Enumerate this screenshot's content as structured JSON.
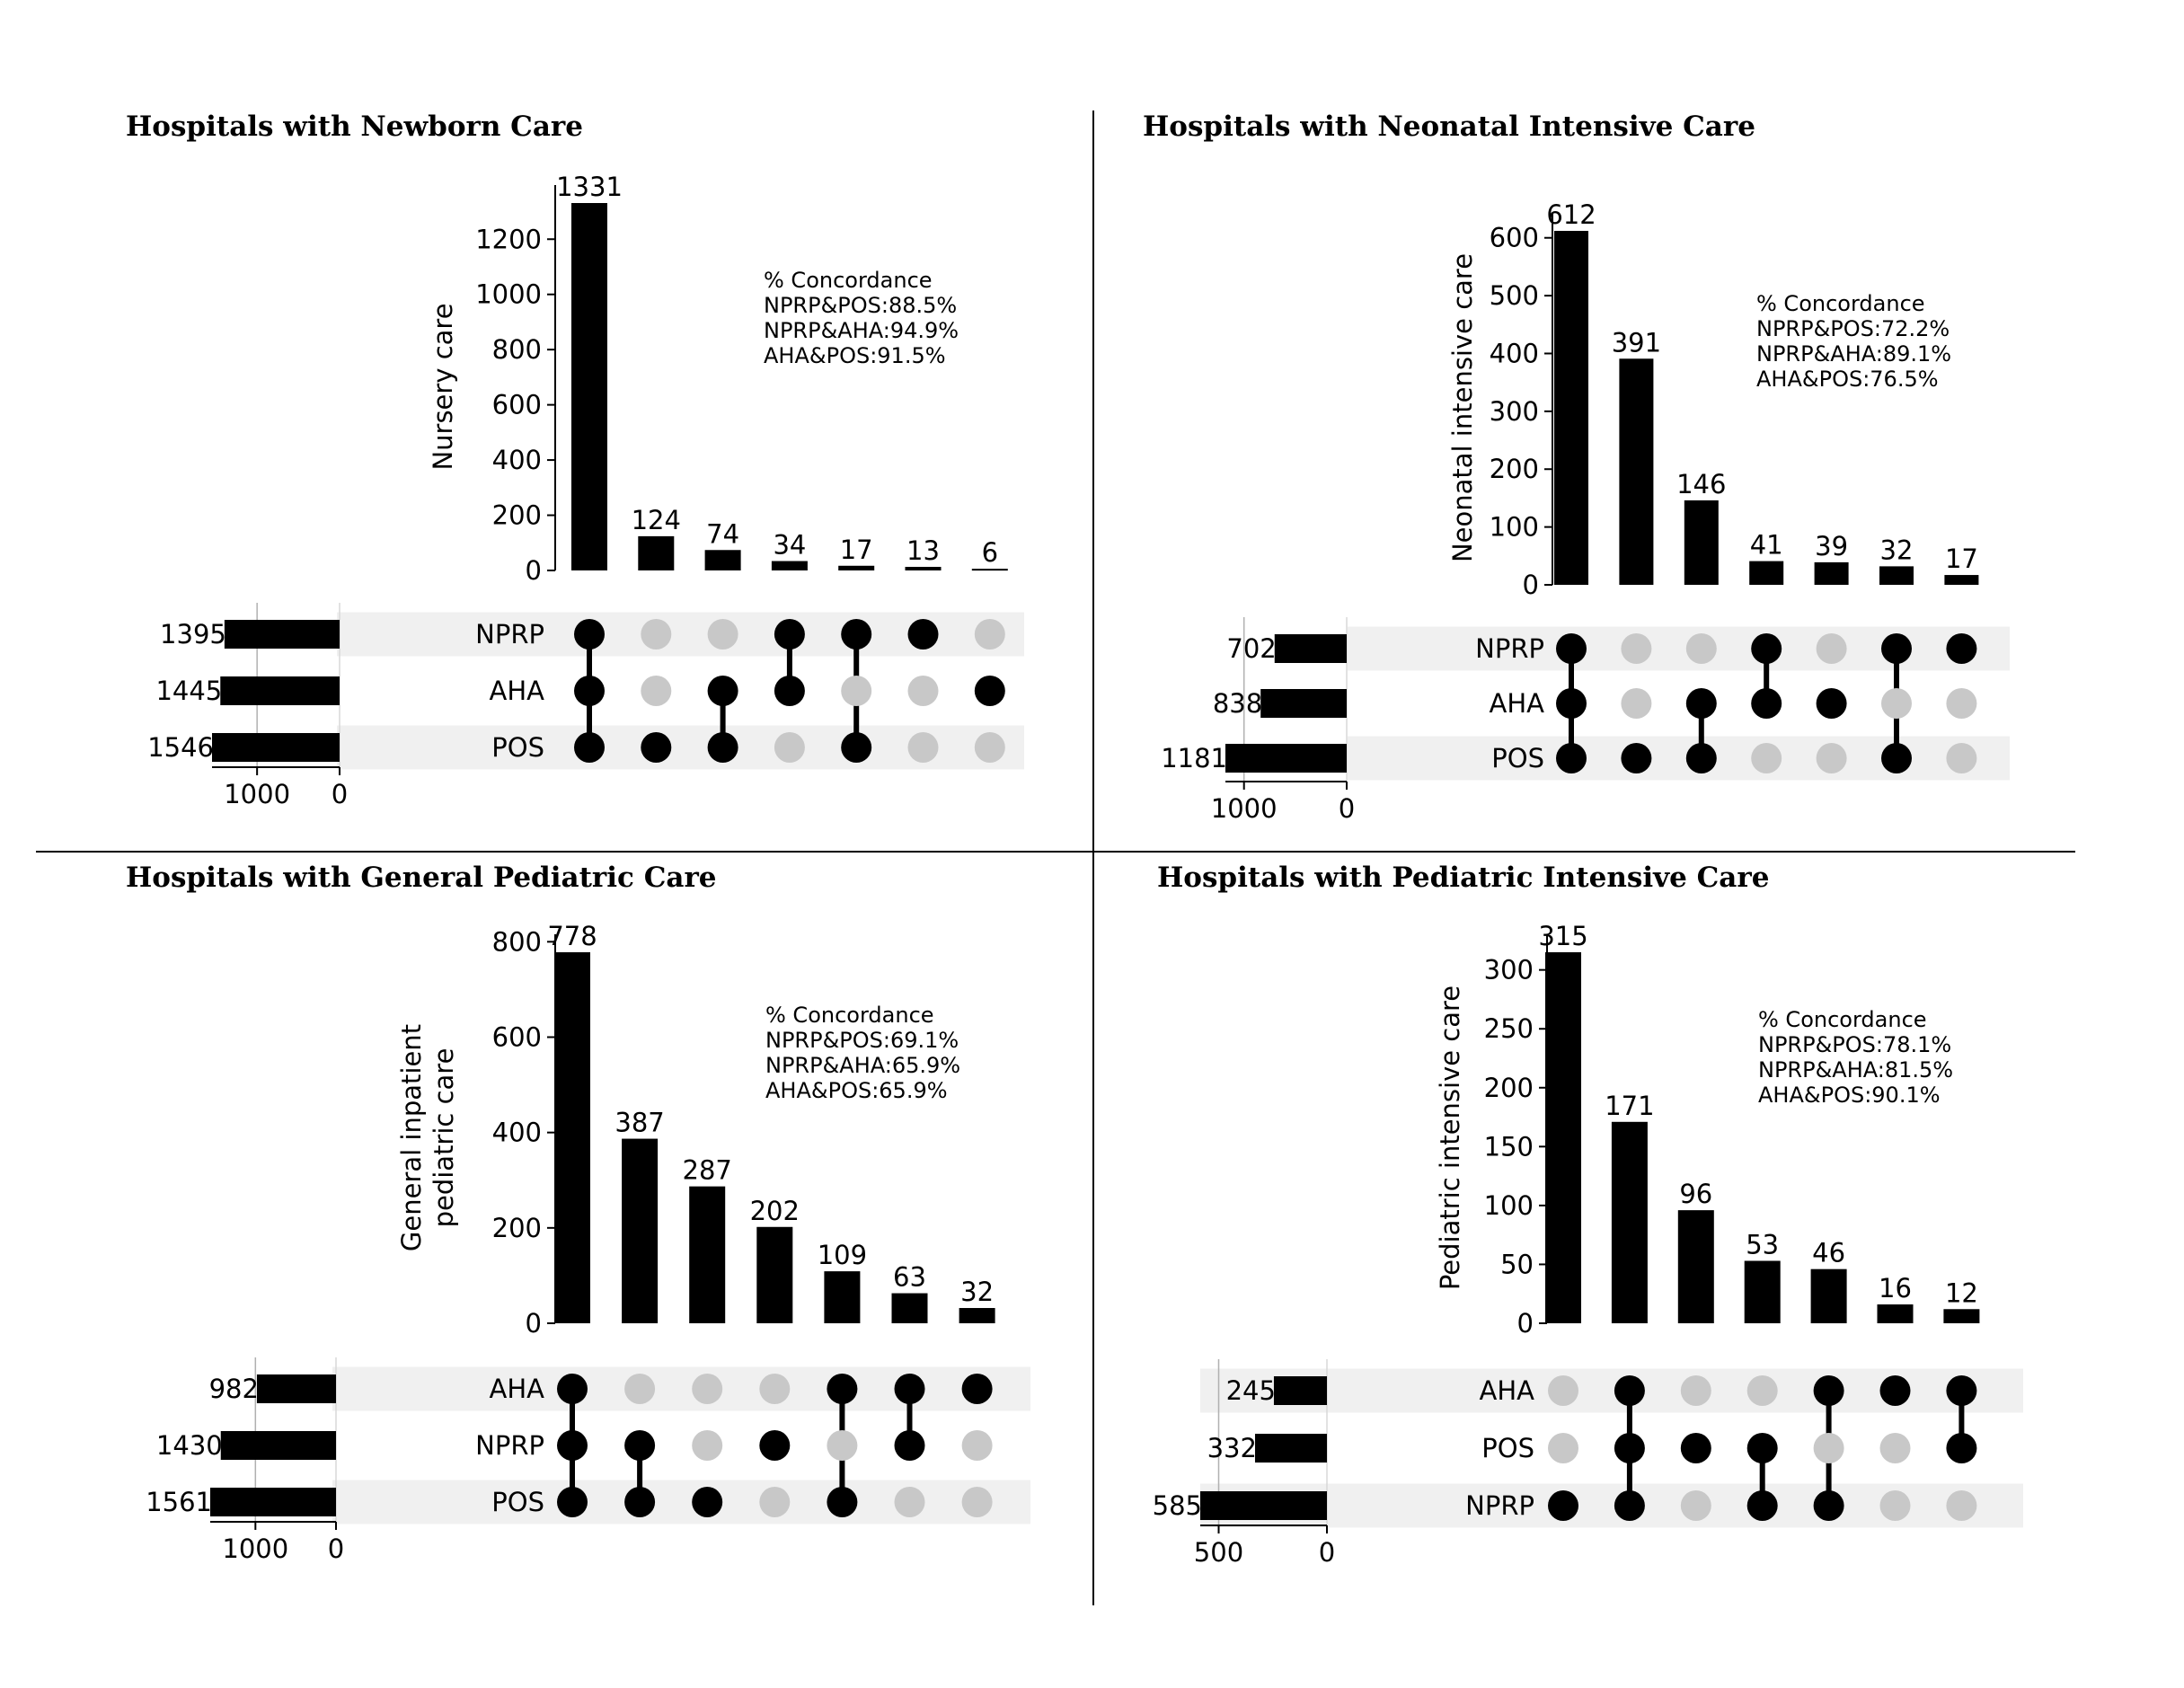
{
  "charts": [
    {
      "title": "Hospitals with Newborn Care",
      "chart_data": {
        "type": "bar",
        "title": "Hospitals with Newborn Care",
        "ylabel": [
          "Nursery care"
        ],
        "ylim": [
          0,
          1331
        ],
        "yticks": [
          0,
          200,
          400,
          600,
          800,
          1000,
          1200
        ],
        "values": [
          1331,
          124,
          74,
          34,
          17,
          13,
          6
        ],
        "sets": [
          "NPRP",
          "AHA",
          "POS"
        ],
        "set_totals": [
          1395,
          1445,
          1546
        ],
        "set_xlim": [
          1546,
          0
        ],
        "set_ticks": [
          1000,
          0
        ],
        "membership": [
          [
            true,
            true,
            true
          ],
          [
            false,
            false,
            true
          ],
          [
            false,
            true,
            true
          ],
          [
            true,
            true,
            false
          ],
          [
            true,
            false,
            true
          ],
          [
            true,
            false,
            false
          ],
          [
            false,
            true,
            false
          ]
        ]
      },
      "concordance": {
        "heading": "% Concordance",
        "lines": [
          "NPRP&POS:88.5%",
          "NPRP&AHA:94.9%",
          "AHA&POS:91.5%"
        ]
      }
    },
    {
      "title": "Hospitals with Neonatal Intensive Care",
      "chart_data": {
        "type": "bar",
        "title": "Hospitals with Neonatal Intensive Care",
        "ylabel": [
          "Neonatal intensive care"
        ],
        "ylim": [
          0,
          612
        ],
        "yticks": [
          0,
          100,
          200,
          300,
          400,
          500,
          600
        ],
        "values": [
          612,
          391,
          146,
          41,
          39,
          32,
          17
        ],
        "sets": [
          "NPRP",
          "AHA",
          "POS"
        ],
        "set_totals": [
          702,
          838,
          1181
        ],
        "set_xlim": [
          1181,
          0
        ],
        "set_ticks": [
          1000,
          0
        ],
        "membership": [
          [
            true,
            true,
            true
          ],
          [
            false,
            false,
            true
          ],
          [
            false,
            true,
            true
          ],
          [
            true,
            true,
            false
          ],
          [
            false,
            true,
            false
          ],
          [
            true,
            false,
            true
          ],
          [
            true,
            false,
            false
          ]
        ]
      },
      "concordance": {
        "heading": "% Concordance",
        "lines": [
          "NPRP&POS:72.2%",
          "NPRP&AHA:89.1%",
          "AHA&POS:76.5%"
        ]
      }
    },
    {
      "title": "Hospitals with General Pediatric Care",
      "chart_data": {
        "type": "bar",
        "title": "Hospitals with General Pediatric Care",
        "ylabel": [
          "General inpatient",
          "pediatric care"
        ],
        "ylim": [
          0,
          778
        ],
        "yticks": [
          0,
          200,
          400,
          600,
          800
        ],
        "values": [
          778,
          387,
          287,
          202,
          109,
          63,
          32
        ],
        "sets": [
          "AHA",
          "NPRP",
          "POS"
        ],
        "set_totals": [
          982,
          1430,
          1561
        ],
        "set_xlim": [
          1561,
          0
        ],
        "set_ticks": [
          1000,
          0
        ],
        "membership": [
          [
            true,
            true,
            true
          ],
          [
            false,
            true,
            true
          ],
          [
            false,
            false,
            true
          ],
          [
            false,
            true,
            false
          ],
          [
            true,
            false,
            true
          ],
          [
            true,
            true,
            false
          ],
          [
            true,
            false,
            false
          ]
        ]
      },
      "concordance": {
        "heading": "% Concordance",
        "lines": [
          "NPRP&POS:69.1%",
          "NPRP&AHA:65.9%",
          "AHA&POS:65.9%"
        ]
      }
    },
    {
      "title": "Hospitals with Pediatric Intensive Care",
      "chart_data": {
        "type": "bar",
        "title": "Hospitals with Pediatric Intensive Care",
        "ylabel": [
          "Pediatric intensive care"
        ],
        "ylim": [
          0,
          315
        ],
        "yticks": [
          0,
          50,
          100,
          150,
          200,
          250,
          300
        ],
        "values": [
          315,
          171,
          96,
          53,
          46,
          16,
          12
        ],
        "sets": [
          "AHA",
          "POS",
          "NPRP"
        ],
        "set_totals": [
          245,
          332,
          585
        ],
        "set_xlim": [
          585,
          0
        ],
        "set_ticks": [
          500,
          0
        ],
        "membership": [
          [
            false,
            false,
            true
          ],
          [
            true,
            true,
            true
          ],
          [
            false,
            true,
            false
          ],
          [
            false,
            true,
            true
          ],
          [
            true,
            false,
            true
          ],
          [
            true,
            false,
            false
          ],
          [
            true,
            true,
            false
          ]
        ]
      },
      "concordance": {
        "heading": "% Concordance",
        "lines": [
          "NPRP&POS:78.1%",
          "NPRP&AHA:81.5%",
          "AHA&POS:90.1%"
        ]
      }
    }
  ],
  "colors": {
    "bar": "#000000",
    "dot_active": "#000000",
    "dot_inactive": "#c8c8c8",
    "row_shade": "#f0f0f0",
    "grid": "#b0b0b0",
    "divider": "#000000"
  }
}
